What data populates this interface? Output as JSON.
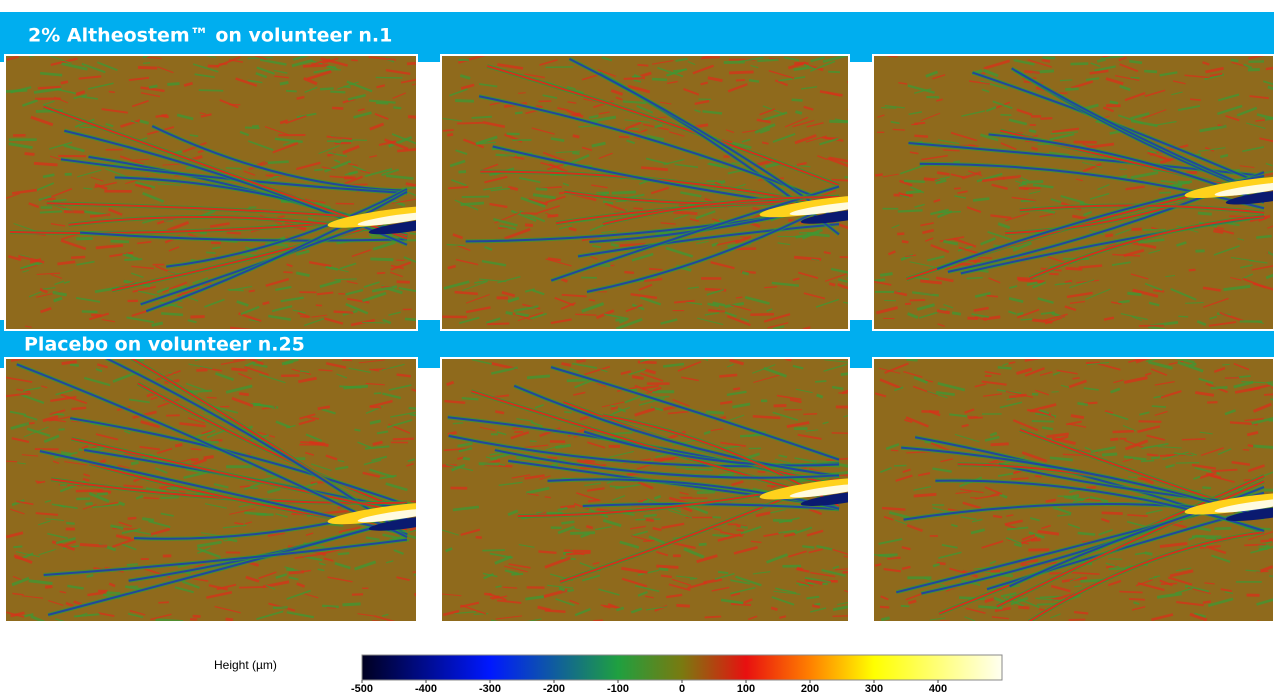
{
  "sections": [
    {
      "title": "2% Altheostem™ on volunteer n.1"
    },
    {
      "title": "Placebo on volunteer n.25"
    }
  ],
  "colorbar": {
    "label": "Height (µm)",
    "clim": [
      -500,
      500
    ],
    "ticks": [
      -500,
      -400,
      -300,
      -200,
      -100,
      0,
      100,
      200,
      300,
      400
    ],
    "stops": [
      {
        "value": -500,
        "color": "#000020"
      },
      {
        "value": -300,
        "color": "#0018ff"
      },
      {
        "value": -100,
        "color": "#1fa040"
      },
      {
        "value": 0,
        "color": "#7a7a10"
      },
      {
        "value": 100,
        "color": "#e81010"
      },
      {
        "value": 200,
        "color": "#ff8000"
      },
      {
        "value": 300,
        "color": "#ffff00"
      },
      {
        "value": 500,
        "color": "#fffff0"
      }
    ]
  }
}
